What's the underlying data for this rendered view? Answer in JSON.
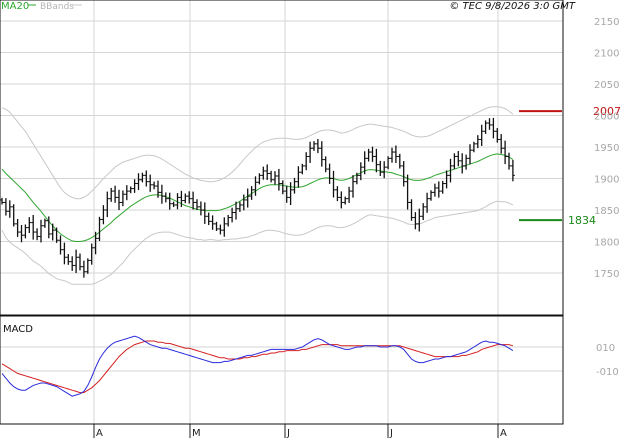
{
  "header": {
    "timestamp": "© TEC 9/8/2026 3:0 GMT",
    "legend_ma": "MA20",
    "legend_bbands": "BBands"
  },
  "macd_panel": {
    "title": "MACD",
    "y_ticks": [
      "010",
      "-010"
    ]
  },
  "colors": {
    "price_bar": "#111111",
    "ma_line": "#2fa52f",
    "bbands": "#c8c8c8",
    "macd_line": "#2a2adb",
    "signal_line": "#d42020",
    "resistance": "#c01414",
    "support": "#1a8a1a",
    "grid": "#d5d5d5"
  },
  "chart_data": [
    {
      "type": "ohlc",
      "y_ticks": [
        1750,
        1800,
        1850,
        1900,
        1950,
        2000,
        2050,
        2100,
        2150
      ],
      "ylim": [
        1715,
        2175
      ],
      "x_ticks": [
        "A",
        "M",
        "J",
        "J",
        "A"
      ],
      "grid": true,
      "levels": [
        {
          "label": "2007",
          "value": 2007,
          "role": "resistance"
        },
        {
          "label": "1834",
          "value": 1834,
          "role": "support"
        }
      ],
      "series": [
        {
          "name": "MA20"
        },
        {
          "name": "BBands"
        }
      ],
      "close": [
        1862,
        1848,
        1855,
        1828,
        1815,
        1810,
        1822,
        1830,
        1815,
        1808,
        1825,
        1833,
        1812,
        1818,
        1802,
        1787,
        1775,
        1768,
        1762,
        1775,
        1760,
        1752,
        1770,
        1790,
        1805,
        1835,
        1850,
        1868,
        1880,
        1870,
        1862,
        1875,
        1880,
        1884,
        1892,
        1898,
        1905,
        1895,
        1890,
        1888,
        1878,
        1872,
        1868,
        1860,
        1858,
        1870,
        1865,
        1872,
        1868,
        1862,
        1855,
        1850,
        1840,
        1832,
        1828,
        1820,
        1818,
        1828,
        1838,
        1846,
        1852,
        1858,
        1866,
        1872,
        1882,
        1894,
        1905,
        1912,
        1908,
        1898,
        1904,
        1892,
        1880,
        1870,
        1882,
        1895,
        1910,
        1920,
        1935,
        1948,
        1955,
        1948,
        1930,
        1915,
        1900,
        1882,
        1870,
        1862,
        1868,
        1880,
        1895,
        1905,
        1918,
        1932,
        1942,
        1935,
        1922,
        1910,
        1918,
        1932,
        1942,
        1935,
        1920,
        1895,
        1862,
        1838,
        1828,
        1840,
        1855,
        1868,
        1878,
        1885,
        1880,
        1892,
        1905,
        1920,
        1935,
        1928,
        1920,
        1932,
        1945,
        1955,
        1962,
        1975,
        1988,
        1985,
        1975,
        1962,
        1948,
        1935,
        1920,
        1905
      ],
      "ma20": [
        1915,
        1908,
        1902,
        1896,
        1890,
        1884,
        1878,
        1870,
        1862,
        1855,
        1848,
        1840,
        1832,
        1825,
        1818,
        1812,
        1808,
        1804,
        1801,
        1800,
        1800,
        1801,
        1803,
        1806,
        1810,
        1815,
        1820,
        1825,
        1830,
        1836,
        1841,
        1846,
        1851,
        1856,
        1860,
        1864,
        1868,
        1871,
        1873,
        1874,
        1874,
        1873,
        1871,
        1869,
        1866,
        1863,
        1860,
        1857,
        1855,
        1853,
        1851,
        1850,
        1849,
        1849,
        1849,
        1849,
        1850,
        1852,
        1854,
        1857,
        1860,
        1864,
        1868,
        1872,
        1876,
        1880,
        1884,
        1887,
        1889,
        1890,
        1890,
        1890,
        1889,
        1888,
        1887,
        1886,
        1886,
        1887,
        1889,
        1892,
        1895,
        1898,
        1900,
        1901,
        1901,
        1900,
        1898,
        1897,
        1898,
        1900,
        1903,
        1906,
        1909,
        1912,
        1914,
        1914,
        1913,
        1912,
        1911,
        1910,
        1909,
        1907,
        1905,
        1903,
        1900,
        1898,
        1897,
        1897,
        1898,
        1900,
        1902,
        1905,
        1907,
        1909,
        1911,
        1913,
        1915,
        1917,
        1919,
        1921,
        1923,
        1925,
        1927,
        1930,
        1933,
        1936,
        1938,
        1939,
        1938,
        1937,
        1934,
        1930
      ],
      "bb_upper": [
        2012,
        2010,
        2005,
        1998,
        1990,
        1982,
        1975,
        1965,
        1955,
        1945,
        1935,
        1925,
        1915,
        1905,
        1895,
        1885,
        1878,
        1873,
        1870,
        1868,
        1868,
        1870,
        1874,
        1880,
        1886,
        1893,
        1900,
        1906,
        1912,
        1918,
        1922,
        1926,
        1928,
        1930,
        1932,
        1934,
        1936,
        1937,
        1937,
        1936,
        1934,
        1931,
        1927,
        1923,
        1919,
        1915,
        1911,
        1907,
        1904,
        1901,
        1899,
        1897,
        1896,
        1895,
        1895,
        1896,
        1898,
        1901,
        1905,
        1910,
        1916,
        1923,
        1930,
        1937,
        1943,
        1949,
        1954,
        1958,
        1960,
        1962,
        1963,
        1964,
        1964,
        1964,
        1963,
        1962,
        1962,
        1963,
        1965,
        1968,
        1971,
        1974,
        1976,
        1977,
        1977,
        1976,
        1974,
        1972,
        1973,
        1975,
        1978,
        1981,
        1983,
        1985,
        1986,
        1986,
        1985,
        1984,
        1983,
        1982,
        1981,
        1979,
        1977,
        1975,
        1972,
        1969,
        1967,
        1966,
        1966,
        1967,
        1969,
        1972,
        1975,
        1978,
        1981,
        1984,
        1987,
        1990,
        1993,
        1996,
        1999,
        2002,
        2005,
        2008,
        2011,
        2013,
        2014,
        2014,
        2013,
        2011,
        2007,
        2002
      ],
      "bb_lower": [
        1818,
        1806,
        1799,
        1794,
        1790,
        1786,
        1781,
        1775,
        1769,
        1765,
        1761,
        1755,
        1749,
        1745,
        1741,
        1739,
        1738,
        1735,
        1732,
        1732,
        1732,
        1732,
        1732,
        1732,
        1734,
        1737,
        1740,
        1744,
        1748,
        1754,
        1760,
        1766,
        1774,
        1782,
        1788,
        1794,
        1800,
        1805,
        1809,
        1812,
        1814,
        1815,
        1815,
        1815,
        1813,
        1811,
        1809,
        1807,
        1806,
        1805,
        1803,
        1803,
        1802,
        1803,
        1803,
        1802,
        1802,
        1803,
        1803,
        1804,
        1804,
        1805,
        1806,
        1807,
        1809,
        1811,
        1814,
        1816,
        1818,
        1818,
        1817,
        1816,
        1814,
        1812,
        1811,
        1810,
        1810,
        1811,
        1813,
        1816,
        1819,
        1822,
        1824,
        1825,
        1825,
        1824,
        1822,
        1822,
        1823,
        1825,
        1828,
        1831,
        1835,
        1839,
        1842,
        1842,
        1841,
        1840,
        1839,
        1838,
        1837,
        1835,
        1833,
        1831,
        1828,
        1827,
        1827,
        1828,
        1830,
        1833,
        1835,
        1838,
        1839,
        1840,
        1841,
        1842,
        1843,
        1844,
        1845,
        1846,
        1847,
        1848,
        1849,
        1852,
        1855,
        1859,
        1862,
        1864,
        1863,
        1863,
        1861,
        1858
      ]
    },
    {
      "type": "line",
      "y_ticks": [
        10,
        -10
      ],
      "ylim": [
        -33,
        22
      ],
      "series": [
        {
          "name": "MACD",
          "values": [
            -12,
            -16,
            -20,
            -23,
            -25,
            -26,
            -26,
            -24,
            -22,
            -21,
            -20,
            -20,
            -21,
            -22,
            -23,
            -25,
            -27,
            -29,
            -31,
            -30,
            -29,
            -27,
            -22,
            -15,
            -7,
            0,
            5,
            9,
            12,
            14,
            15,
            16,
            17,
            18,
            19,
            18,
            16,
            14,
            12,
            11,
            10,
            9,
            9,
            8,
            7,
            6,
            5,
            4,
            3,
            2,
            1,
            0,
            -1,
            -2,
            -3,
            -3,
            -3,
            -2,
            -2,
            -1,
            0,
            1,
            2,
            3,
            3,
            4,
            5,
            6,
            7,
            8,
            8,
            8,
            8,
            8,
            8,
            8,
            9,
            10,
            12,
            14,
            16,
            17,
            16,
            14,
            12,
            11,
            10,
            9,
            8,
            8,
            9,
            10,
            10,
            11,
            11,
            11,
            11,
            10,
            10,
            10,
            11,
            11,
            10,
            8,
            4,
            0,
            -2,
            -3,
            -3,
            -2,
            -1,
            0,
            0,
            1,
            2,
            2,
            3,
            4,
            5,
            6,
            8,
            10,
            12,
            14,
            15,
            14,
            14,
            13,
            12,
            11,
            9,
            7
          ]
        },
        {
          "name": "Signal",
          "values": [
            -4,
            -6,
            -8,
            -10,
            -12,
            -13,
            -14,
            -15,
            -16,
            -17,
            -18,
            -19,
            -20,
            -21,
            -22,
            -23,
            -24,
            -25,
            -26,
            -27,
            -28,
            -28,
            -26,
            -24,
            -21,
            -18,
            -14,
            -10,
            -6,
            -2,
            2,
            5,
            8,
            10,
            12,
            13,
            14,
            15,
            15,
            15,
            14,
            14,
            13,
            13,
            12,
            11,
            10,
            9,
            9,
            8,
            7,
            6,
            5,
            4,
            3,
            2,
            1,
            1,
            0,
            0,
            0,
            0,
            1,
            1,
            2,
            2,
            3,
            4,
            4,
            5,
            5,
            6,
            6,
            7,
            7,
            7,
            7,
            8,
            8,
            9,
            10,
            11,
            12,
            12,
            12,
            12,
            12,
            11,
            11,
            11,
            11,
            11,
            11,
            11,
            11,
            11,
            11,
            11,
            11,
            11,
            11,
            11,
            11,
            10,
            9,
            8,
            7,
            6,
            5,
            4,
            3,
            2,
            2,
            2,
            2,
            2,
            2,
            2,
            3,
            3,
            4,
            5,
            6,
            8,
            9,
            10,
            11,
            12,
            12,
            12,
            12,
            11
          ]
        }
      ]
    }
  ]
}
